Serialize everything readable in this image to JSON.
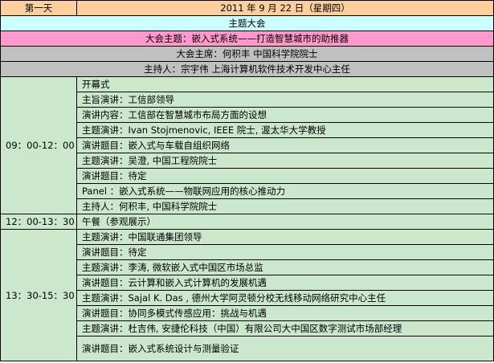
{
  "header": {
    "day": "第一天",
    "date": "2011 年 9 月 22 日（星期四）"
  },
  "plenary_title": "主题大会",
  "theme": "大会主题：嵌入式系统——打造智慧城市的助推器",
  "chair": "大会主席：何积丰  中国科学院院士",
  "host": "主持人：宗宇伟   上海计算机软件技术开发中心主任",
  "sessions": [
    {
      "time": "09：00-12：00",
      "items": [
        "开幕式",
        "主旨演讲：工信部领导",
        "演讲内容：工信部在智慧城市布局方面的设想",
        "主题演讲：Ivan Stojmenovic, IEEE 院士, 渥太华大学教授",
        "演讲题目：嵌入式与车载自组织网络",
        "主题演讲：吴澄, 中国工程院院士",
        "演讲题目：待定",
        "Panel ：嵌入式系统——物联网应用的核心推动力",
        "主持人：何积丰, 中国科学院院士"
      ]
    },
    {
      "time": "12：00-13：30",
      "items": [
        "午餐（参观展示）"
      ]
    },
    {
      "time": "13：30-15：30",
      "items": [
        "主题演讲：中国联通集团领导",
        "演讲题目：待定",
        "主题演讲：李涛, 微软嵌入式中国区市场总监",
        "演讲题目：云计算和嵌入式计算机的发展机遇",
        "主题演讲：Sajal K. Das , 德州大学阿灵顿分校无线移动网络研究中心主任",
        "演讲题目：协同多模式传感应用：挑战与机遇",
        "主题演讲：杜吉伟, 安捷伦科技（中国）有限公司大中国区数字测试市场部经理",
        "演讲题目：嵌入式系统设计与测量验证"
      ]
    }
  ],
  "colors": {
    "header": "#FCCF9C",
    "plenary": "#CCFFFF",
    "theme": "#FF99CC",
    "chair": "#C0C0C0",
    "schedule": "#CCE8CC"
  }
}
